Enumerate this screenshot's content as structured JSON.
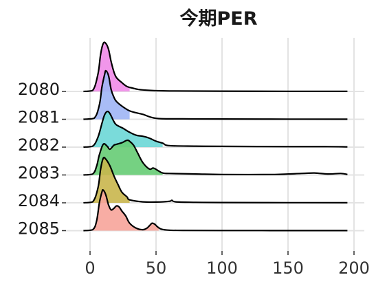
{
  "chart_data": {
    "type": "ridgeline",
    "title": "今期PER",
    "xlabel": "",
    "ylabel": "",
    "xlim": [
      -5,
      205
    ],
    "x_ticks": [
      0,
      50,
      100,
      150,
      200
    ],
    "grid": true,
    "legend": "none",
    "categories": [
      "2080",
      "2081",
      "2082",
      "2083",
      "2084",
      "2085"
    ],
    "series": [
      {
        "colour": "#f08be8",
        "x": [
          -5,
          2,
          6,
          8,
          10,
          12,
          14,
          16,
          18,
          20,
          24,
          28,
          32,
          40,
          60,
          100,
          150,
          195
        ],
        "density": [
          0,
          0.02,
          0.35,
          0.75,
          0.97,
          0.97,
          0.85,
          0.6,
          0.4,
          0.28,
          0.18,
          0.1,
          0.07,
          0.03,
          0.01,
          0.005,
          0.003,
          0.002
        ]
      },
      {
        "colour": "#9eb5f5",
        "x": [
          -5,
          3,
          7,
          9,
          11,
          12,
          14,
          16,
          18,
          20,
          25,
          30,
          35,
          40,
          50,
          70,
          100,
          150,
          195
        ],
        "density": [
          0,
          0.02,
          0.28,
          0.65,
          0.9,
          0.98,
          0.88,
          0.6,
          0.45,
          0.36,
          0.25,
          0.17,
          0.13,
          0.1,
          0.02,
          0.008,
          0.005,
          0.003,
          0.002
        ]
      },
      {
        "colour": "#6cd7d6",
        "x": [
          -5,
          2,
          6,
          9,
          11,
          13,
          15,
          18,
          20,
          25,
          30,
          35,
          40,
          45,
          50,
          55,
          60,
          80,
          100,
          150,
          180,
          195
        ],
        "density": [
          0,
          0.02,
          0.2,
          0.48,
          0.65,
          0.72,
          0.68,
          0.52,
          0.45,
          0.38,
          0.3,
          0.24,
          0.22,
          0.18,
          0.12,
          0.08,
          0.03,
          0.02,
          0.015,
          0.01,
          0.01,
          0.005
        ]
      },
      {
        "colour": "#66cc74",
        "x": [
          -5,
          2,
          5,
          7,
          10,
          13,
          15,
          18,
          20,
          24,
          28,
          30,
          33,
          36,
          40,
          45,
          48,
          52,
          55,
          60,
          80,
          100,
          140,
          160,
          170,
          180,
          190,
          195
        ],
        "density": [
          0,
          0.02,
          0.18,
          0.4,
          0.62,
          0.58,
          0.52,
          0.6,
          0.62,
          0.65,
          0.7,
          0.68,
          0.6,
          0.45,
          0.25,
          0.12,
          0.14,
          0.08,
          0.04,
          0.03,
          0.02,
          0.01,
          0.01,
          0.03,
          0.04,
          0.02,
          0.03,
          0.01
        ]
      },
      {
        "colour": "#c9b64c",
        "x": [
          -5,
          2,
          6,
          8,
          10,
          12,
          15,
          18,
          21,
          24,
          28,
          30,
          40,
          50,
          60,
          62,
          65,
          80,
          100,
          150,
          195
        ],
        "density": [
          0,
          0.02,
          0.3,
          0.68,
          0.9,
          0.88,
          0.75,
          0.55,
          0.38,
          0.22,
          0.12,
          0.06,
          0.02,
          0.015,
          0.03,
          0.05,
          0.02,
          0.01,
          0.005,
          0.003,
          0.002
        ]
      },
      {
        "colour": "#f7a49a",
        "x": [
          -5,
          2,
          5,
          7,
          9,
          10,
          12,
          14,
          16,
          18,
          20,
          22,
          24,
          27,
          30,
          35,
          40,
          43,
          45,
          47,
          49,
          51,
          54,
          60,
          70,
          100,
          150,
          195
        ],
        "density": [
          0,
          0.02,
          0.2,
          0.55,
          0.78,
          0.82,
          0.72,
          0.52,
          0.42,
          0.45,
          0.5,
          0.48,
          0.4,
          0.3,
          0.15,
          0.05,
          0.02,
          0.05,
          0.1,
          0.15,
          0.13,
          0.08,
          0.03,
          0.01,
          0.005,
          0.003,
          0.002,
          0.002
        ]
      }
    ]
  }
}
